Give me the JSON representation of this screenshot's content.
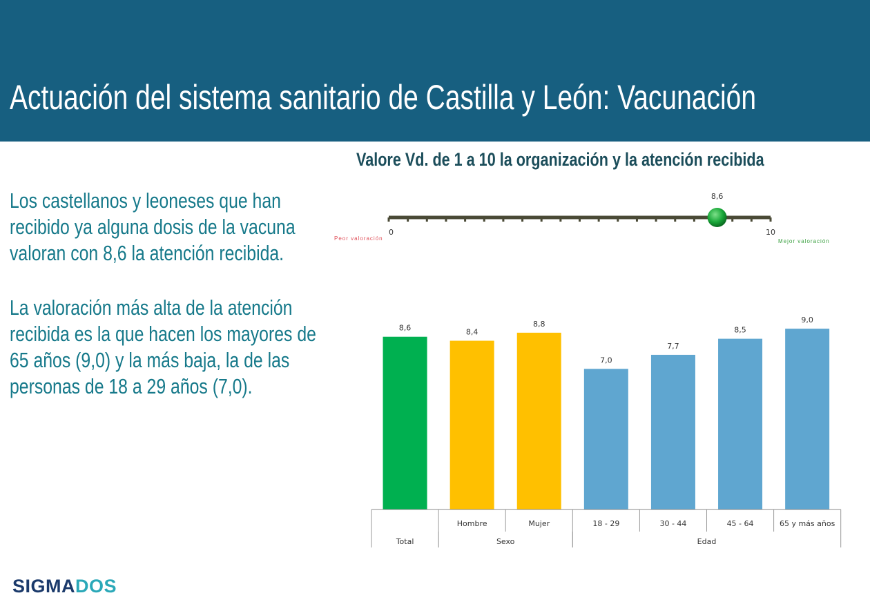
{
  "header": {
    "title": "Actuación del sistema sanitario de Castilla y León: Vacunación"
  },
  "left_text": {
    "p1": "Los castellanos y leoneses que han recibido ya alguna dosis de la vacuna valoran con 8,6 la atención recibida.",
    "p2": "La valoración más alta de la atención recibida es la que hacen los mayores de 65 años (9,0) y la más baja, la de las personas de 18 a 29 años (7,0)."
  },
  "logo": {
    "part1": "SIGMA",
    "part2": "DOS"
  },
  "colors": {
    "header": "#175f80",
    "total": "#00b050",
    "sexo": "#ffc000",
    "edad": "#5fa6d0",
    "slider_ball": "#1aa83a"
  },
  "chart_data": [
    {
      "type": "gauge",
      "title": "Valore Vd. de 1 a 10 la organización y la atención recibida",
      "min": 0,
      "max": 10,
      "value": 8.6,
      "min_label": "0",
      "max_label": "10",
      "value_label": "8,6",
      "low_caption": "Peor valoración",
      "high_caption": "Mejor valoración"
    },
    {
      "type": "bar",
      "categories": [
        "Total",
        "Hombre",
        "Mujer",
        "18 - 29",
        "30 - 44",
        "45 - 64",
        "65 y más años"
      ],
      "category_labels": [
        "",
        "Hombre",
        "Mujer",
        "18 - 29",
        "30 - 44",
        "45 - 64",
        "65 y más años"
      ],
      "groups": [
        {
          "label": "Total",
          "span": 1
        },
        {
          "label": "Sexo",
          "span": 2
        },
        {
          "label": "Edad",
          "span": 4
        }
      ],
      "values": [
        8.6,
        8.4,
        8.8,
        7.0,
        7.7,
        8.5,
        9.0
      ],
      "data_labels": [
        "8,6",
        "8,4",
        "8,8",
        "7,0",
        "7,7",
        "8,5",
        "9,0"
      ],
      "bar_colors": [
        "#00b050",
        "#ffc000",
        "#ffc000",
        "#5fa6d0",
        "#5fa6d0",
        "#5fa6d0",
        "#5fa6d0"
      ],
      "ylim": [
        0,
        10
      ],
      "grid": false
    }
  ]
}
